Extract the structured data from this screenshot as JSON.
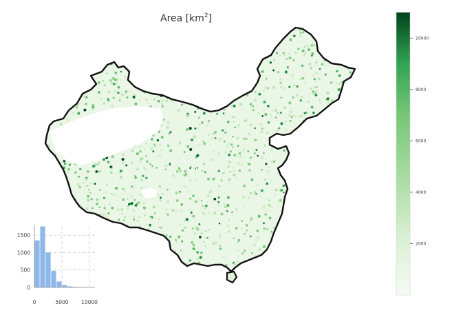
{
  "title": "Area [km",
  "title_sup": "2",
  "title_end": "]",
  "colorbar": {
    "min": 0,
    "max": 11000,
    "ticks": [
      {
        "value": 2000,
        "label": "2000"
      },
      {
        "value": 4000,
        "label": "4000"
      },
      {
        "value": 6000,
        "label": "6000"
      },
      {
        "value": 8000,
        "label": "8000"
      },
      {
        "value": 10000,
        "label": "10000"
      }
    ],
    "colors": {
      "low": "#f7fcf5",
      "mid": "#74c476",
      "high": "#00441b"
    }
  },
  "map": {
    "region": "China",
    "dot_color_low": "#e5f5e0",
    "dot_color_high": "#005a32",
    "border_color": "#111111"
  },
  "chart_data": {
    "type": "bar",
    "categories": [
      "0-1000",
      "1000-2000",
      "2000-3000",
      "3000-4000",
      "4000-5000",
      "5000-6000",
      "6000-7000",
      "7000-8000",
      "8000-9000",
      "9000-10000",
      "10000-11000"
    ],
    "values": [
      1350,
      1750,
      1000,
      480,
      170,
      70,
      30,
      15,
      8,
      5,
      2
    ],
    "x_ticks": [
      {
        "value": 0,
        "label": "0"
      },
      {
        "value": 5000,
        "label": "5000"
      },
      {
        "value": 10000,
        "label": "10000"
      }
    ],
    "y_ticks": [
      {
        "value": 0,
        "label": "0"
      },
      {
        "value": 500,
        "label": "500"
      },
      {
        "value": 1000,
        "label": "1000"
      },
      {
        "value": 1500,
        "label": "1500"
      }
    ],
    "xlim": [
      0,
      11000
    ],
    "ylim": [
      0,
      1800
    ],
    "bar_color": "#8fb8ea",
    "grid": true
  }
}
